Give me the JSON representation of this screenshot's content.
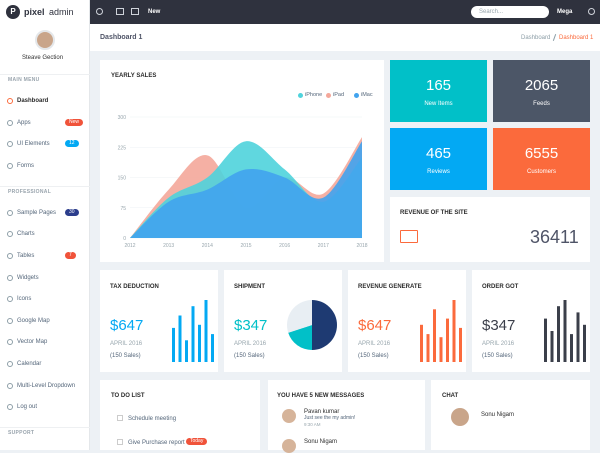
{
  "sidebar": {
    "logo_letter": "P",
    "logo_bold": "pixel",
    "logo_rest": "admin",
    "user": "Steave Gection",
    "sections": [
      {
        "title": "MAIN MENU",
        "items": [
          {
            "label": "Dashboard",
            "active": true
          },
          {
            "label": "Apps",
            "badge": "New",
            "badge_color": "#f0533a"
          },
          {
            "label": "UI Elements",
            "badge": "12",
            "badge_color": "#03a9f3"
          },
          {
            "label": "Forms"
          }
        ]
      },
      {
        "title": "PROFESSIONAL",
        "items": [
          {
            "label": "Sample Pages",
            "badge": "30",
            "badge_color": "#2b3d8c"
          },
          {
            "label": "Charts"
          },
          {
            "label": "Tables",
            "badge": "7",
            "badge_color": "#f0533a"
          },
          {
            "label": "Widgets"
          },
          {
            "label": "Icons"
          },
          {
            "label": "Google Map"
          },
          {
            "label": "Vector Map"
          },
          {
            "label": "Calendar"
          },
          {
            "label": "Multi-Level Dropdown"
          },
          {
            "label": "Log out"
          }
        ]
      },
      {
        "title": "SUPPORT",
        "items": []
      }
    ]
  },
  "topbar": {
    "new": "New",
    "search": "Search...",
    "mega": "Mega"
  },
  "breadcrumb": {
    "title": "Dashboard 1",
    "trail": [
      "Dashboard",
      "Dashboard 1"
    ]
  },
  "yearly_sales": {
    "type": "area",
    "title": "YEARLY SALES",
    "categories": [
      "2012",
      "2013",
      "2014",
      "2015",
      "2016",
      "2017",
      "2018"
    ],
    "series": [
      {
        "name": "iPhone",
        "color": "#4fd3dc",
        "values": [
          0,
          100,
          150,
          240,
          170,
          90,
          200
        ]
      },
      {
        "name": "iPad",
        "color": "#f4a79a",
        "values": [
          0,
          120,
          205,
          75,
          150,
          110,
          250
        ]
      },
      {
        "name": "iMac",
        "color": "#41a3ee",
        "values": [
          0,
          90,
          120,
          170,
          150,
          100,
          240
        ]
      }
    ],
    "ylim": [
      0,
      300
    ],
    "yticks": [
      0,
      75,
      150,
      225,
      300
    ],
    "grid": true
  },
  "stats": [
    {
      "value": "165",
      "label": "New Items",
      "color": "#01c0c8"
    },
    {
      "value": "2065",
      "label": "Feeds",
      "color": "#4c5667"
    },
    {
      "value": "465",
      "label": "Reviews",
      "color": "#03a9f3"
    },
    {
      "value": "6555",
      "label": "Customers",
      "color": "#fb6a3c"
    }
  ],
  "revenue_site": {
    "title": "REVENUE OF THE SITE",
    "value": "36411"
  },
  "mini_cards": [
    {
      "title": "TAX DEDUCTION",
      "value": "$647",
      "date": "APRIL 2016",
      "sales": "(150 Sales)",
      "color": "#03a9f3",
      "type": "bar",
      "values": [
        55,
        75,
        35,
        90,
        60,
        100,
        45
      ]
    },
    {
      "title": "SHIPMENT",
      "value": "$347",
      "date": "APRIL 2016",
      "sales": "(150 Sales)",
      "color": "#01c0c8",
      "type": "pie",
      "values": [
        50,
        20,
        30
      ],
      "colors": [
        "#1e3a72",
        "#01c0c8",
        "#e8eef3"
      ]
    },
    {
      "title": "REVENUE GENERATE",
      "value": "$647",
      "date": "APRIL 2016",
      "sales": "(150 Sales)",
      "color": "#fb6a3c",
      "type": "bar",
      "values": [
        60,
        45,
        85,
        40,
        70,
        100,
        55
      ]
    },
    {
      "title": "ORDER GOT",
      "value": "$347",
      "date": "APRIL 2016",
      "sales": "(150 Sales)",
      "color": "#3b3f4a",
      "type": "bar",
      "values": [
        70,
        50,
        90,
        100,
        45,
        80,
        60
      ]
    }
  ],
  "todo": {
    "title": "TO DO LIST",
    "items": [
      {
        "text": "Schedule meeting"
      },
      {
        "text": "Give Purchase report",
        "badge": "Today"
      }
    ]
  },
  "messages": {
    "title": "YOU HAVE 5 NEW MESSAGES",
    "items": [
      {
        "name": "Pavan kumar",
        "text": "Just see the my admin!",
        "time": "9:30 AM"
      },
      {
        "name": "Sonu Nigam"
      }
    ]
  },
  "chat": {
    "title": "CHAT",
    "items": [
      {
        "name": "Sonu Nigam"
      }
    ]
  }
}
